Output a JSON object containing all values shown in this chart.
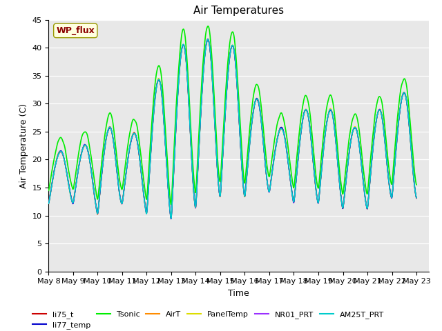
{
  "title": "Air Temperatures",
  "xlabel": "Time",
  "ylabel": "Air Temperature (C)",
  "ylim": [
    0,
    45
  ],
  "yticks": [
    0,
    5,
    10,
    15,
    20,
    25,
    30,
    35,
    40,
    45
  ],
  "annotation_text": "WP_flux",
  "annotation_color": "#8B0000",
  "annotation_bg": "#FFFFE0",
  "annotation_border": "#999900",
  "series_order": [
    "li75_t",
    "li77_temp",
    "Tsonic",
    "AirT",
    "PanelTemp",
    "NR01_PRT",
    "AM25T_PRT"
  ],
  "series": {
    "li75_t": {
      "color": "#CC0000",
      "lw": 1.0,
      "zorder": 3
    },
    "li77_temp": {
      "color": "#0000CC",
      "lw": 1.0,
      "zorder": 4
    },
    "Tsonic": {
      "color": "#00EE00",
      "lw": 1.2,
      "zorder": 5
    },
    "AirT": {
      "color": "#FF8C00",
      "lw": 1.0,
      "zorder": 3
    },
    "PanelTemp": {
      "color": "#DDDD00",
      "lw": 1.0,
      "zorder": 2
    },
    "NR01_PRT": {
      "color": "#9B30FF",
      "lw": 1.0,
      "zorder": 3
    },
    "AM25T_PRT": {
      "color": "#00CCCC",
      "lw": 1.2,
      "zorder": 6
    }
  },
  "x_tick_labels": [
    "May 8",
    "May 9",
    "May 10",
    "May 11",
    "May 12",
    "May 13",
    "May 14",
    "May 15",
    "May 16",
    "May 17",
    "May 18",
    "May 19",
    "May 20",
    "May 21",
    "May 22",
    "May 23"
  ],
  "plot_bg": "#E8E8E8",
  "figsize": [
    6.4,
    4.8
  ],
  "dpi": 100,
  "day_peaks": [
    21,
    22,
    25,
    24,
    33,
    39,
    40,
    39,
    30,
    25,
    28,
    28,
    25,
    28,
    31
  ],
  "day_troughs": [
    12,
    12,
    10,
    12,
    10,
    9,
    11,
    13,
    13,
    14,
    12,
    12,
    11,
    11,
    13,
    13
  ],
  "tsonic_extra": 2.5
}
